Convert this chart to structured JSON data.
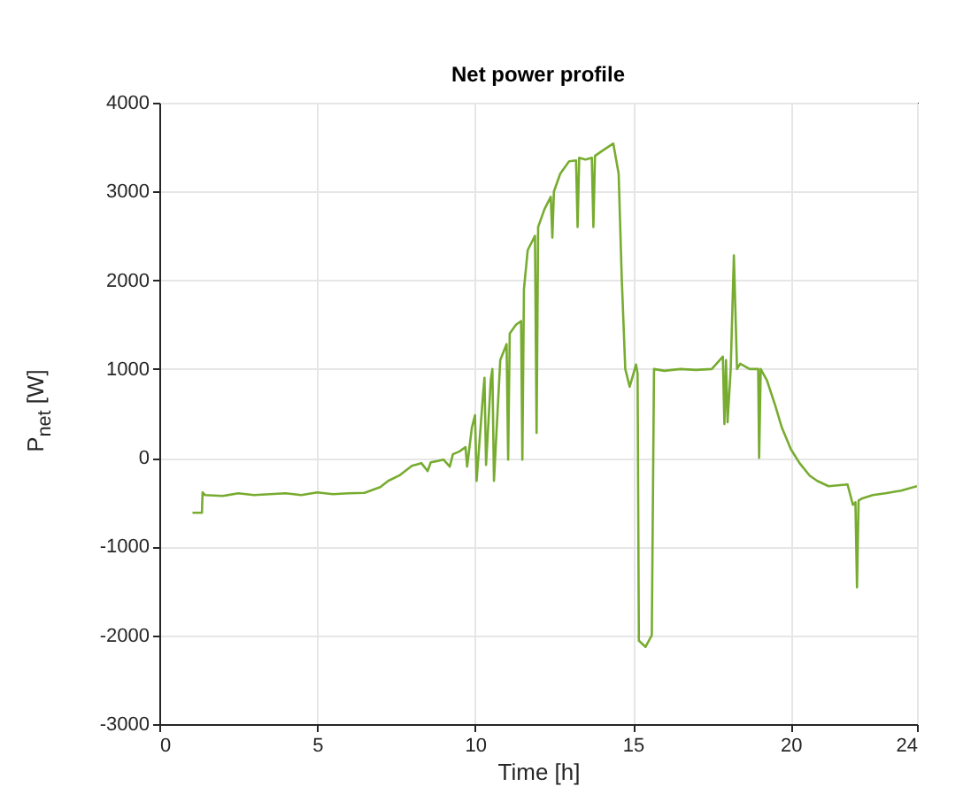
{
  "chart_data": {
    "type": "line",
    "title": "Net power profile",
    "xlabel": "Time [h]",
    "ylabel": "P$_{net}$ [W]",
    "x": [
      1.05,
      1.35,
      1.37,
      1.45,
      2.0,
      2.5,
      3.0,
      3.5,
      4.0,
      4.5,
      5.0,
      5.5,
      6.0,
      6.5,
      7.0,
      7.25,
      7.6,
      8.0,
      8.3,
      8.5,
      8.6,
      8.76,
      9.0,
      9.2,
      9.3,
      9.5,
      9.7,
      9.75,
      9.9,
      10.0,
      10.05,
      10.26,
      10.3,
      10.35,
      10.5,
      10.55,
      10.6,
      10.8,
      11.0,
      11.05,
      11.1,
      11.3,
      11.46,
      11.5,
      11.55,
      11.67,
      11.9,
      11.95,
      12.0,
      12.2,
      12.4,
      12.45,
      12.5,
      12.7,
      12.98,
      13.2,
      13.25,
      13.3,
      13.5,
      13.7,
      13.75,
      13.8,
      14.0,
      14.38,
      14.55,
      14.65,
      14.76,
      14.9,
      15.1,
      15.15,
      15.19,
      15.4,
      15.6,
      15.67,
      16.0,
      16.5,
      17.0,
      17.5,
      17.85,
      17.9,
      17.95,
      18.0,
      18.1,
      18.2,
      18.3,
      18.4,
      18.7,
      18.97,
      19.0,
      19.05,
      19.25,
      19.5,
      19.72,
      20.0,
      20.28,
      20.6,
      20.84,
      21.2,
      21.8,
      21.97,
      22.05,
      22.1,
      22.15,
      22.25,
      22.6,
      23.0,
      23.5,
      24.0
    ],
    "series": [
      {
        "color": "#77ac30",
        "values": [
          -620,
          -620,
          -390,
          -420,
          -430,
          -400,
          -420,
          -410,
          -400,
          -420,
          -390,
          -410,
          -400,
          -395,
          -330,
          -260,
          -200,
          -90,
          -60,
          -150,
          -50,
          -40,
          -20,
          -100,
          40,
          70,
          120,
          -100,
          340,
          480,
          -260,
          740,
          900,
          -80,
          880,
          1000,
          -260,
          1100,
          1280,
          -20,
          1400,
          1500,
          1540,
          -20,
          1900,
          2340,
          2500,
          280,
          2600,
          2800,
          2940,
          2480,
          3000,
          3200,
          3340,
          3350,
          2600,
          3380,
          3360,
          3380,
          2600,
          3400,
          3450,
          3540,
          3200,
          2000,
          1000,
          800,
          1050,
          950,
          -2060,
          -2130,
          -2000,
          1000,
          980,
          1000,
          990,
          1000,
          1140,
          380,
          1100,
          400,
          1000,
          2280,
          1000,
          1060,
          1000,
          1000,
          0,
          1000,
          870,
          600,
          340,
          100,
          -60,
          -200,
          -260,
          -320,
          -300,
          -530,
          -500,
          -1460,
          -480,
          -460,
          -420,
          -400,
          -370,
          -320
        ]
      }
    ],
    "xlim": [
      0,
      24
    ],
    "xticks": [
      0,
      5,
      10,
      15,
      20,
      24
    ],
    "ylim": [
      -3000,
      4000
    ],
    "yticks": [
      -3000,
      -2000,
      -1000,
      0,
      1000,
      2000,
      3000,
      4000
    ],
    "grid": true
  }
}
